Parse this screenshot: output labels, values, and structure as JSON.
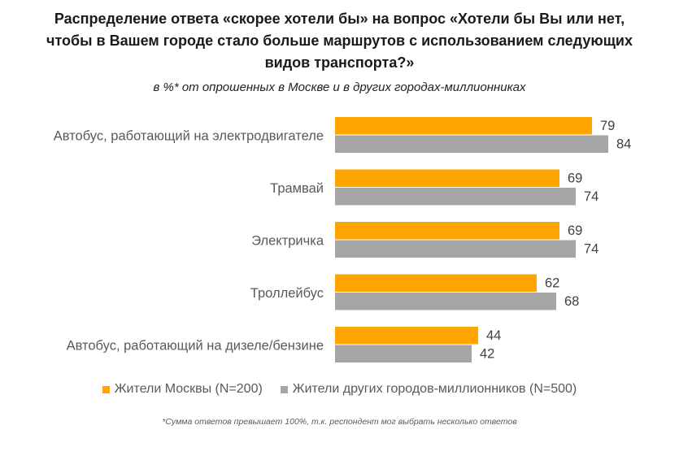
{
  "chart_data": {
    "type": "bar",
    "orientation": "horizontal",
    "title": "Распределение ответа «скорее хотели бы» на вопрос «Хотели бы Вы или нет,\nчтобы в Вашем городе стало больше маршрутов с использованием следующих\nвидов транспорта?»",
    "subtitle": "в %* от опрошенных в Москве и в других городах-миллионниках",
    "categories": [
      "Автобус, работающий на электродвигателе",
      "Трамвай",
      "Электричка",
      "Троллейбус",
      "Автобус, работающий на дизеле/бензине"
    ],
    "series": [
      {
        "name": "Жители Москвы (N=200)",
        "color": "#FFA500",
        "values": [
          79,
          69,
          69,
          62,
          44
        ],
        "labels": [
          "79",
          "69",
          "69",
          "62",
          "44"
        ]
      },
      {
        "name": "Жители других городов-миллионников (N=500)",
        "color": "#A5A5A5",
        "values": [
          84,
          74,
          74,
          68,
          42
        ],
        "labels": [
          "84",
          "74",
          "74",
          "68",
          "42"
        ]
      }
    ],
    "xlim": [
      0,
      100
    ],
    "grid": false,
    "data_labels": true,
    "legend_placement": "bottom",
    "footnote": "*Сумма ответов превышает 100%, т.к. респондент мог выбрать несколько ответов"
  }
}
